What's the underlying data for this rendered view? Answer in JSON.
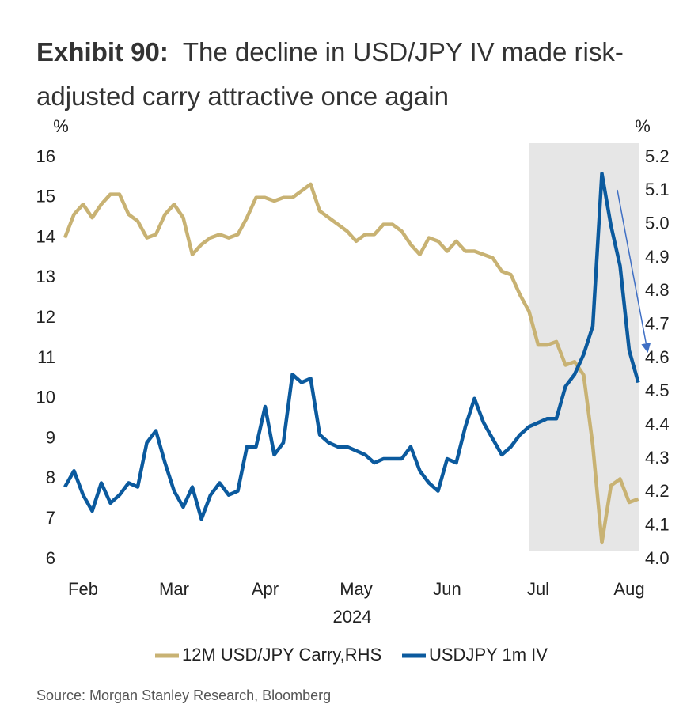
{
  "chart_data": {
    "type": "line",
    "title_label": "Exhibit 90:",
    "title": "The decline in USD/JPY IV made risk-adjusted carry attractive once again",
    "ylabel": "%",
    "y2label": "%",
    "xlabel": "2024",
    "source": "Source: Morgan Stanley Research, Bloomberg",
    "categories": [
      null,
      null,
      "Feb",
      null,
      null,
      null,
      null,
      null,
      null,
      null,
      null,
      null,
      "Mar",
      null,
      null,
      null,
      null,
      null,
      null,
      null,
      null,
      null,
      "Apr",
      null,
      null,
      null,
      null,
      null,
      null,
      null,
      null,
      null,
      "May",
      null,
      null,
      null,
      null,
      null,
      null,
      null,
      null,
      null,
      "Jun",
      null,
      null,
      null,
      null,
      null,
      null,
      null,
      null,
      null,
      "Jul",
      null,
      null,
      null,
      null,
      null,
      null,
      null,
      null,
      null,
      "Aug",
      null
    ],
    "ylim": [
      6,
      16
    ],
    "yticks": [
      6,
      7,
      8,
      9,
      10,
      11,
      12,
      13,
      14,
      15,
      16
    ],
    "y2lim": [
      4.0,
      5.2
    ],
    "y2ticks": [
      {
        "value": 4,
        "label": "4.0"
      },
      4.1,
      4.2,
      4.3,
      4.4,
      4.5,
      4.6,
      4.7,
      4.8,
      4.9,
      {
        "value": 5,
        "label": "5.0"
      },
      5.1,
      5.2
    ],
    "grid": false,
    "legend": "bottom",
    "series": [
      {
        "name": "12M USD/JPY Carry,RHS",
        "color": "#c8b273",
        "axis": "y2",
        "values": [
          4.96,
          5.03,
          5.06,
          5.02,
          5.06,
          5.09,
          5.09,
          5.03,
          5.01,
          4.96,
          4.97,
          5.03,
          5.06,
          5.02,
          4.91,
          4.94,
          4.96,
          4.97,
          4.96,
          4.97,
          5.02,
          5.08,
          5.08,
          5.07,
          5.08,
          5.08,
          5.1,
          5.12,
          5.04,
          5.02,
          5.0,
          4.98,
          4.95,
          4.97,
          4.97,
          5.0,
          5.0,
          4.98,
          4.94,
          4.91,
          4.96,
          4.95,
          4.92,
          4.95,
          4.92,
          4.92,
          4.91,
          4.9,
          4.86,
          4.85,
          4.79,
          4.74,
          4.64,
          4.64,
          4.65,
          4.58,
          4.59,
          4.55,
          4.34,
          4.05,
          4.22,
          4.24,
          4.17,
          4.18
        ]
      },
      {
        "name": "USDJPY 1m IV",
        "color": "#0b5a9e",
        "axis": "y",
        "values": [
          7.8,
          8.2,
          7.6,
          7.2,
          7.9,
          7.4,
          7.6,
          7.9,
          7.8,
          8.9,
          9.2,
          8.4,
          7.7,
          7.3,
          7.8,
          7.0,
          7.6,
          7.9,
          7.6,
          7.7,
          8.8,
          8.8,
          9.8,
          8.6,
          8.9,
          10.6,
          10.4,
          10.5,
          9.1,
          8.9,
          8.8,
          8.8,
          8.7,
          8.6,
          8.4,
          8.5,
          8.5,
          8.5,
          8.8,
          8.2,
          7.9,
          7.7,
          8.5,
          8.4,
          9.3,
          10.0,
          9.4,
          9.0,
          8.6,
          8.8,
          9.1,
          9.3,
          9.4,
          9.5,
          9.5,
          10.3,
          10.6,
          11.1,
          11.8,
          15.6,
          14.3,
          13.3,
          11.2,
          10.4
        ]
      }
    ]
  }
}
